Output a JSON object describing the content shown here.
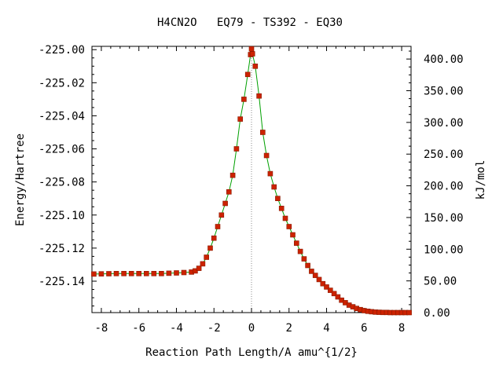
{
  "chart_data": {
    "type": "line",
    "title": "H4CN2O   EQ79 - TS392 - EQ30",
    "xlabel": "Reaction Path Length/A amu^{1/2}",
    "ylabel": "Energy/Hartree",
    "y2label": "kJ/mol",
    "xlim": [
      -8.5,
      8.5
    ],
    "ylim": [
      -225.159,
      -224.998
    ],
    "y2lim": [
      0,
      420
    ],
    "x_ticks": [
      -8,
      -6,
      -4,
      -2,
      0,
      2,
      4,
      6,
      8
    ],
    "x_tick_labels": [
      "-8",
      "-6",
      "-4",
      "-2",
      "0",
      "2",
      "4",
      "6",
      "8"
    ],
    "y_ticks": [
      -225.0,
      -225.02,
      -225.04,
      -225.06,
      -225.08,
      -225.1,
      -225.12,
      -225.14
    ],
    "y_tick_labels": [
      "-225.00",
      "-225.02",
      "-225.04",
      "-225.06",
      "-225.08",
      "-225.10",
      "-225.12",
      "-225.14"
    ],
    "y2_ticks": [
      0,
      50,
      100,
      150,
      200,
      250,
      300,
      350,
      400
    ],
    "y2_tick_labels": [
      "0.00",
      "50.00",
      "100.00",
      "150.00",
      "200.00",
      "250.00",
      "300.00",
      "350.00",
      "400.00"
    ],
    "grid": false,
    "ts_marker_x": 0,
    "colors": {
      "line": "#00a000",
      "marker": "#cc2200",
      "ts_marker_line": "#888888",
      "axis": "#000000"
    },
    "series": [
      {
        "x": [
          -8.4,
          -8.0,
          -7.6,
          -7.2,
          -6.8,
          -6.4,
          -6.0,
          -5.6,
          -5.2,
          -4.8,
          -4.4,
          -4.0,
          -3.6,
          -3.2,
          -3.0,
          -2.8,
          -2.6,
          -2.4,
          -2.2,
          -2.0,
          -1.8,
          -1.6,
          -1.4,
          -1.2,
          -1.0,
          -0.8,
          -0.6,
          -0.4,
          -0.2,
          -0.05,
          0.0,
          0.05,
          0.2,
          0.4,
          0.6,
          0.8,
          1.0,
          1.2,
          1.4,
          1.6,
          1.8,
          2.0,
          2.2,
          2.4,
          2.6,
          2.8,
          3.0,
          3.2,
          3.4,
          3.6,
          3.8,
          4.0,
          4.2,
          4.4,
          4.6,
          4.8,
          5.0,
          5.2,
          5.4,
          5.6,
          5.8,
          6.0,
          6.2,
          6.4,
          6.6,
          6.8,
          7.0,
          7.2,
          7.4,
          7.6,
          7.8,
          8.0,
          8.2,
          8.4
        ],
        "y": [
          -225.1357,
          -225.1356,
          -225.1355,
          -225.1354,
          -225.1354,
          -225.1354,
          -225.1354,
          -225.1354,
          -225.1354,
          -225.1354,
          -225.1352,
          -225.135,
          -225.1348,
          -225.1345,
          -225.1338,
          -225.1322,
          -225.1295,
          -225.1255,
          -225.12,
          -225.114,
          -225.107,
          -225.1,
          -225.093,
          -225.086,
          -225.076,
          -225.06,
          -225.042,
          -225.03,
          -225.015,
          -225.003,
          -224.9995,
          -225.0025,
          -225.01,
          -225.028,
          -225.05,
          -225.064,
          -225.075,
          -225.083,
          -225.09,
          -225.096,
          -225.102,
          -225.107,
          -225.112,
          -225.117,
          -225.122,
          -225.1265,
          -225.1305,
          -225.134,
          -225.1365,
          -225.139,
          -225.1415,
          -225.1435,
          -225.1455,
          -225.1475,
          -225.1495,
          -225.1515,
          -225.153,
          -225.1545,
          -225.1555,
          -225.1565,
          -225.1572,
          -225.1578,
          -225.1582,
          -225.1585,
          -225.1587,
          -225.1588,
          -225.1589,
          -225.1589,
          -225.159,
          -225.159,
          -225.159,
          -225.159,
          -225.159,
          -225.159
        ]
      }
    ]
  }
}
